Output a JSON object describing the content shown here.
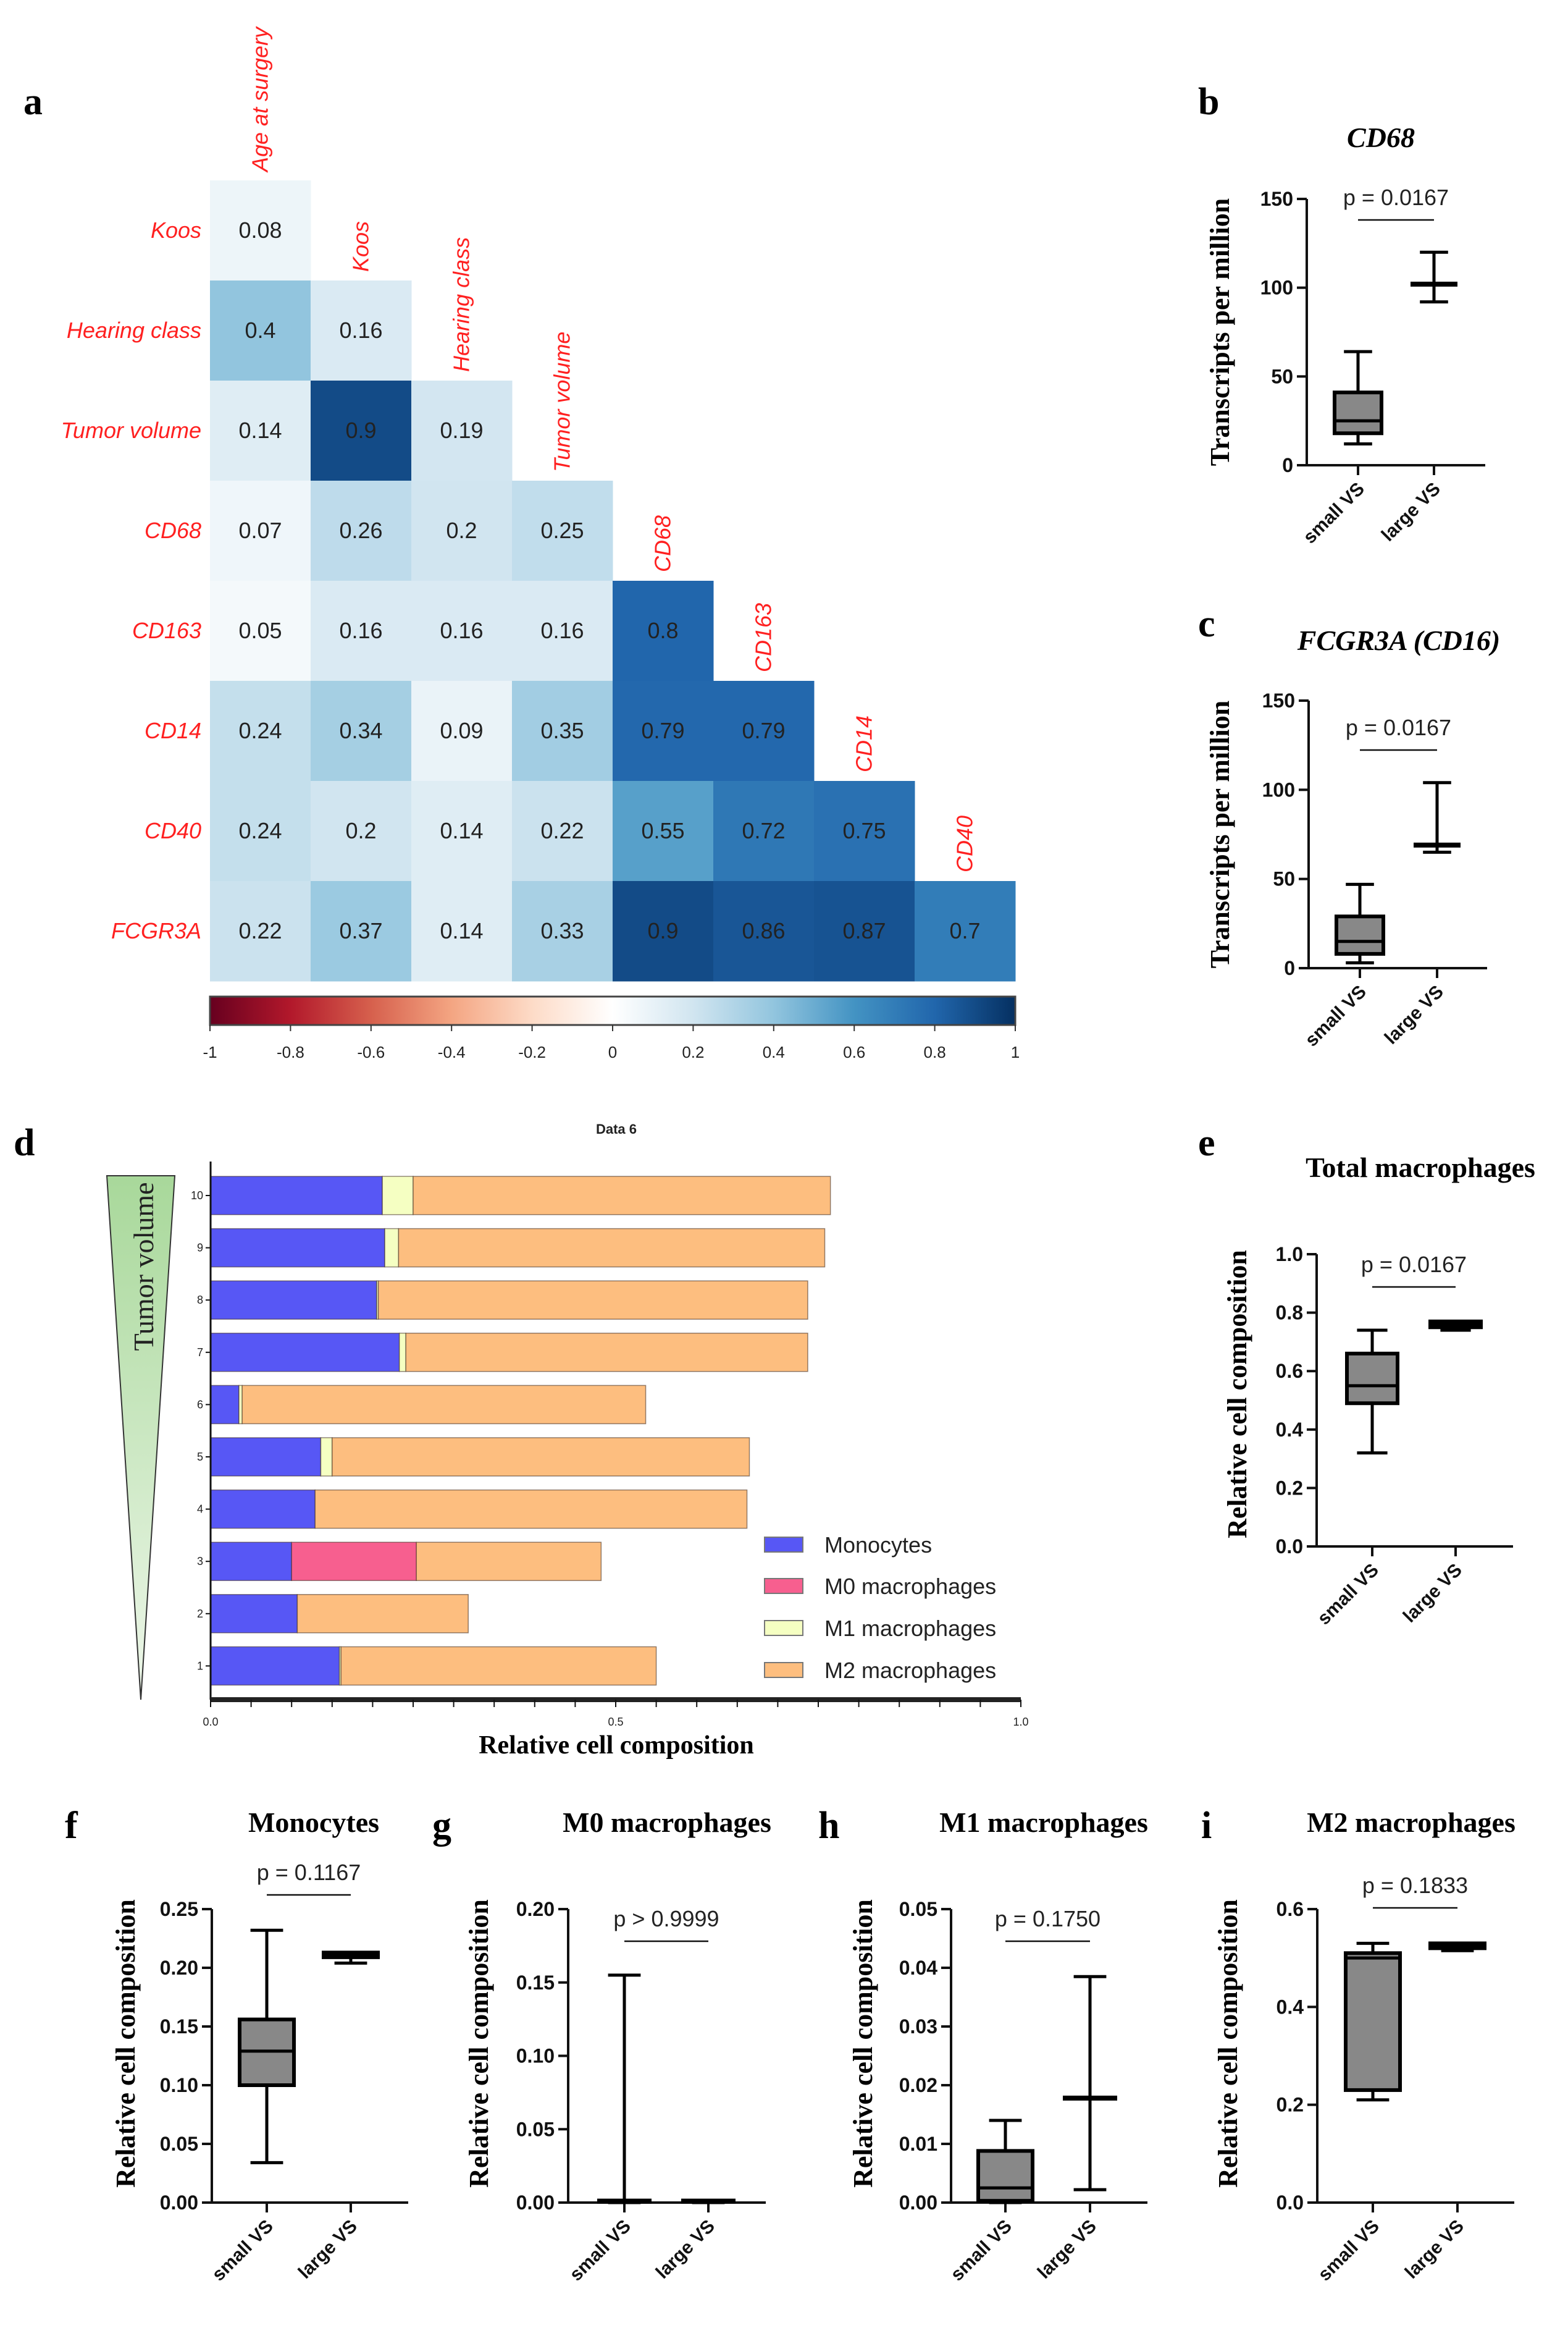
{
  "panels": {
    "a": "a",
    "b": "b",
    "c": "c",
    "d": "d",
    "e": "e",
    "f": "f",
    "g": "g",
    "h": "h",
    "i": "i"
  },
  "chart_data": [
    {
      "id": "a",
      "type": "heatmap",
      "title": "",
      "columns": [
        "Age at surgery",
        "Koos",
        "Hearing class",
        "Tumor volume",
        "CD68",
        "CD163",
        "CD14",
        "CD40"
      ],
      "rows": [
        "Koos",
        "Hearing class",
        "Tumor volume",
        "CD68",
        "CD163",
        "CD14",
        "CD40",
        "FCGR3A"
      ],
      "values": [
        [
          0.08,
          null,
          null,
          null,
          null,
          null,
          null,
          null
        ],
        [
          0.4,
          0.16,
          null,
          null,
          null,
          null,
          null,
          null
        ],
        [
          0.14,
          0.9,
          0.19,
          null,
          null,
          null,
          null,
          null
        ],
        [
          0.07,
          0.26,
          0.2,
          0.25,
          null,
          null,
          null,
          null
        ],
        [
          0.05,
          0.16,
          0.16,
          0.16,
          0.8,
          null,
          null,
          null
        ],
        [
          0.24,
          0.34,
          0.09,
          0.35,
          0.79,
          0.79,
          null,
          null
        ],
        [
          0.24,
          0.2,
          0.14,
          0.22,
          0.55,
          0.72,
          0.75,
          null
        ],
        [
          0.22,
          0.37,
          0.14,
          0.33,
          0.9,
          0.86,
          0.87,
          0.7
        ]
      ],
      "colorbar": {
        "range": [
          -1,
          1
        ],
        "ticks": [
          "-1",
          "-0.8",
          "-0.6",
          "-0.4",
          "-0.2",
          "0",
          "0.2",
          "0.4",
          "0.6",
          "0.8",
          "1"
        ],
        "palette": [
          "#67001f",
          "#b2182b",
          "#d6604d",
          "#f4a582",
          "#fddbc7",
          "#ffffff",
          "#d1e5f0",
          "#92c5de",
          "#4393c3",
          "#2166ac",
          "#053061"
        ]
      },
      "label_color": "#ff2020"
    },
    {
      "id": "b",
      "type": "boxplot",
      "title": "CD68",
      "title_italic": true,
      "ylabel": "Transcripts per million",
      "ylim": [
        0,
        150
      ],
      "yticks": [
        0,
        50,
        100,
        150
      ],
      "ytick_labels": [
        "0",
        "50",
        "100",
        "150"
      ],
      "categories": [
        "small VS",
        "large VS"
      ],
      "boxes": [
        {
          "min": 12,
          "q1": 18,
          "median": 25,
          "q3": 41,
          "max": 64
        },
        {
          "min": 92,
          "q1": 102,
          "median": 102,
          "q3": 102,
          "max": 120
        }
      ],
      "pvalue": "p = 0.0167"
    },
    {
      "id": "c",
      "type": "boxplot",
      "title": "FCGR3A (CD16)",
      "title_italic": true,
      "ylabel": "Transcripts per million",
      "ylim": [
        0,
        150
      ],
      "yticks": [
        0,
        50,
        100,
        150
      ],
      "ytick_labels": [
        "0",
        "50",
        "100",
        "150"
      ],
      "categories": [
        "small VS",
        "large VS"
      ],
      "boxes": [
        {
          "min": 3,
          "q1": 8,
          "median": 15,
          "q3": 29,
          "max": 47
        },
        {
          "min": 65,
          "q1": 69,
          "median": 69,
          "q3": 69,
          "max": 104
        }
      ],
      "pvalue": "p = 0.0167"
    },
    {
      "id": "d",
      "type": "bar",
      "orientation": "horizontal-stacked",
      "title": "Data 6",
      "xlabel": "Relative cell composition",
      "ylabel": "Tumor volume",
      "xlim": [
        0,
        1
      ],
      "xticks": [
        "0.0",
        "0.5",
        "1.0"
      ],
      "categories": [
        "10",
        "9",
        "8",
        "7",
        "6",
        "5",
        "4",
        "3",
        "2",
        "1"
      ],
      "series": [
        {
          "name": "Monocytes",
          "color": "#5757f5",
          "values": [
            0.212,
            0.215,
            0.205,
            0.233,
            0.035,
            0.136,
            0.129,
            0.1,
            0.107,
            0.159
          ]
        },
        {
          "name": "M0 macrophages",
          "color": "#f75f8f",
          "values": [
            0,
            0,
            0,
            0,
            0,
            0,
            0,
            0.154,
            0,
            0
          ]
        },
        {
          "name": "M1 macrophages",
          "color": "#f5ffc2",
          "values": [
            0.038,
            0.017,
            0.002,
            0.008,
            0.004,
            0.014,
            0,
            0,
            0,
            0.002
          ]
        },
        {
          "name": "M2 macrophages",
          "color": "#fdbe7f",
          "values": [
            0.515,
            0.526,
            0.53,
            0.496,
            0.498,
            0.515,
            0.533,
            0.228,
            0.211,
            0.389
          ]
        }
      ],
      "legend": "bottom-right"
    },
    {
      "id": "e",
      "type": "boxplot",
      "title": "Total macrophages",
      "title_italic": false,
      "ylabel": "Relative cell composition",
      "ylim": [
        0,
        1.0
      ],
      "yticks": [
        0,
        0.2,
        0.4,
        0.6,
        0.8,
        1.0
      ],
      "ytick_labels": [
        "0.0",
        "0.2",
        "0.4",
        "0.6",
        "0.8",
        "1.0"
      ],
      "categories": [
        "small VS",
        "large VS"
      ],
      "boxes": [
        {
          "min": 0.32,
          "q1": 0.49,
          "median": 0.55,
          "q3": 0.66,
          "max": 0.74
        },
        {
          "min": 0.74,
          "q1": 0.75,
          "median": 0.76,
          "q3": 0.77,
          "max": 0.77
        }
      ],
      "pvalue": "p = 0.0167"
    },
    {
      "id": "f",
      "type": "boxplot",
      "title": "Monocytes",
      "title_italic": false,
      "ylabel": "Relative cell composition",
      "ylim": [
        0,
        0.25
      ],
      "yticks": [
        0,
        0.05,
        0.1,
        0.15,
        0.2,
        0.25
      ],
      "ytick_labels": [
        "0.00",
        "0.05",
        "0.10",
        "0.15",
        "0.20",
        "0.25"
      ],
      "categories": [
        "small VS",
        "large VS"
      ],
      "boxes": [
        {
          "min": 0.034,
          "q1": 0.1,
          "median": 0.129,
          "q3": 0.156,
          "max": 0.232
        },
        {
          "min": 0.204,
          "q1": 0.209,
          "median": 0.211,
          "q3": 0.213,
          "max": 0.213
        }
      ],
      "pvalue": "p = 0.1167"
    },
    {
      "id": "g",
      "type": "boxplot",
      "title": "M0 macrophages",
      "title_italic": false,
      "ylabel": "Relative cell composition",
      "ylim": [
        0,
        0.2
      ],
      "yticks": [
        0,
        0.05,
        0.1,
        0.15,
        0.2
      ],
      "ytick_labels": [
        "0.00",
        "0.05",
        "0.10",
        "0.15",
        "0.20"
      ],
      "categories": [
        "small VS",
        "large VS"
      ],
      "boxes": [
        {
          "min": 0,
          "q1": 0,
          "median": 0.001,
          "q3": 0.001,
          "max": 0.155
        },
        {
          "min": 0,
          "q1": 0,
          "median": 0.001,
          "q3": 0.001,
          "max": 0.001
        }
      ],
      "pvalue": "p > 0.9999"
    },
    {
      "id": "h",
      "type": "boxplot",
      "title": "M1 macrophages",
      "title_italic": false,
      "ylabel": "Relative cell composition",
      "ylim": [
        0,
        0.05
      ],
      "yticks": [
        0,
        0.01,
        0.02,
        0.03,
        0.04,
        0.05
      ],
      "ytick_labels": [
        "0.00",
        "0.01",
        "0.02",
        "0.03",
        "0.04",
        "0.05"
      ],
      "categories": [
        "small VS",
        "large VS"
      ],
      "boxes": [
        {
          "min": 0,
          "q1": 0.0003,
          "median": 0.0025,
          "q3": 0.0088,
          "max": 0.014
        },
        {
          "min": 0.0022,
          "q1": 0.0178,
          "median": 0.0178,
          "q3": 0.0178,
          "max": 0.0385
        }
      ],
      "pvalue": "p = 0.1750"
    },
    {
      "id": "i",
      "type": "boxplot",
      "title": "M2 macrophages",
      "title_italic": false,
      "ylabel": "Relative cell composition",
      "ylim": [
        0,
        0.6
      ],
      "yticks": [
        0,
        0.2,
        0.4,
        0.6
      ],
      "ytick_labels": [
        "0.0",
        "0.2",
        "0.4",
        "0.6"
      ],
      "categories": [
        "small VS",
        "large VS"
      ],
      "boxes": [
        {
          "min": 0.21,
          "q1": 0.23,
          "median": 0.5,
          "q3": 0.51,
          "max": 0.53
        },
        {
          "min": 0.515,
          "q1": 0.52,
          "median": 0.525,
          "q3": 0.53,
          "max": 0.53
        }
      ],
      "pvalue": "p = 0.1833"
    }
  ]
}
